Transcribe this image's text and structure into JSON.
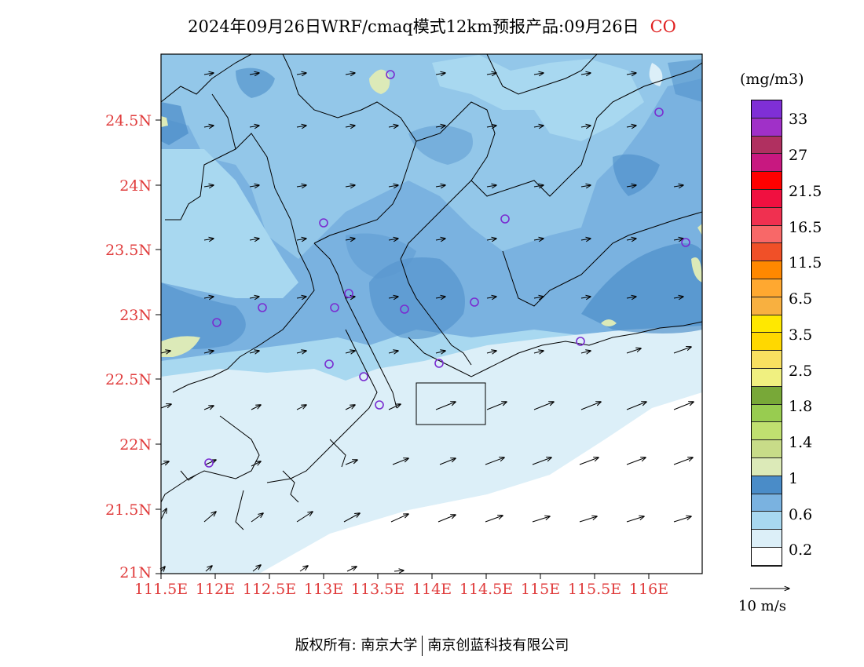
{
  "title": {
    "main": "2024年09月26日WRF/cmaq模式12km预报产品:09月26日",
    "pollutant": "CO"
  },
  "axes": {
    "lat_labels": [
      "24.5N",
      "24N",
      "23.5N",
      "23N",
      "22.5N",
      "22N",
      "21.5N",
      "21N"
    ],
    "lon_labels": [
      "111.5E",
      "112E",
      "112.5E",
      "113E",
      "113.5E",
      "114E",
      "114.5E",
      "115E",
      "115.5E",
      "116E"
    ]
  },
  "legend": {
    "units": "(mg/m3)",
    "labels": [
      "33",
      "27",
      "21.5",
      "16.5",
      "11.5",
      "6.5",
      "3.5",
      "2.5",
      "1.8",
      "1.4",
      "1",
      "0.6",
      "0.2"
    ],
    "colors_top_to_bottom": [
      "#7f2fd6",
      "#a030c8",
      "#b03060",
      "#c81880",
      "#ff0000",
      "#f01040",
      "#f03050",
      "#f86868",
      "#f05028",
      "#ff8800",
      "#ffa830",
      "#f8b040",
      "#ffe800",
      "#ffd800",
      "#f8e060",
      "#f0f080",
      "#78a838",
      "#98cc50",
      "#c0e070",
      "#c8dc88",
      "#dceab8",
      "#4a8cc8",
      "#7ab2e0",
      "#a8d8f0",
      "#dceff8",
      "#ffffff"
    ]
  },
  "wind_reference": {
    "label": "10 m/s"
  },
  "footer": {
    "left": "版权所有: 南京大学",
    "right": "南京创蓝科技有限公司"
  },
  "stations_icon": "circle-marker-icon",
  "colors": {
    "axis_label": "#e03c3c",
    "station": "#7a2cd0"
  }
}
